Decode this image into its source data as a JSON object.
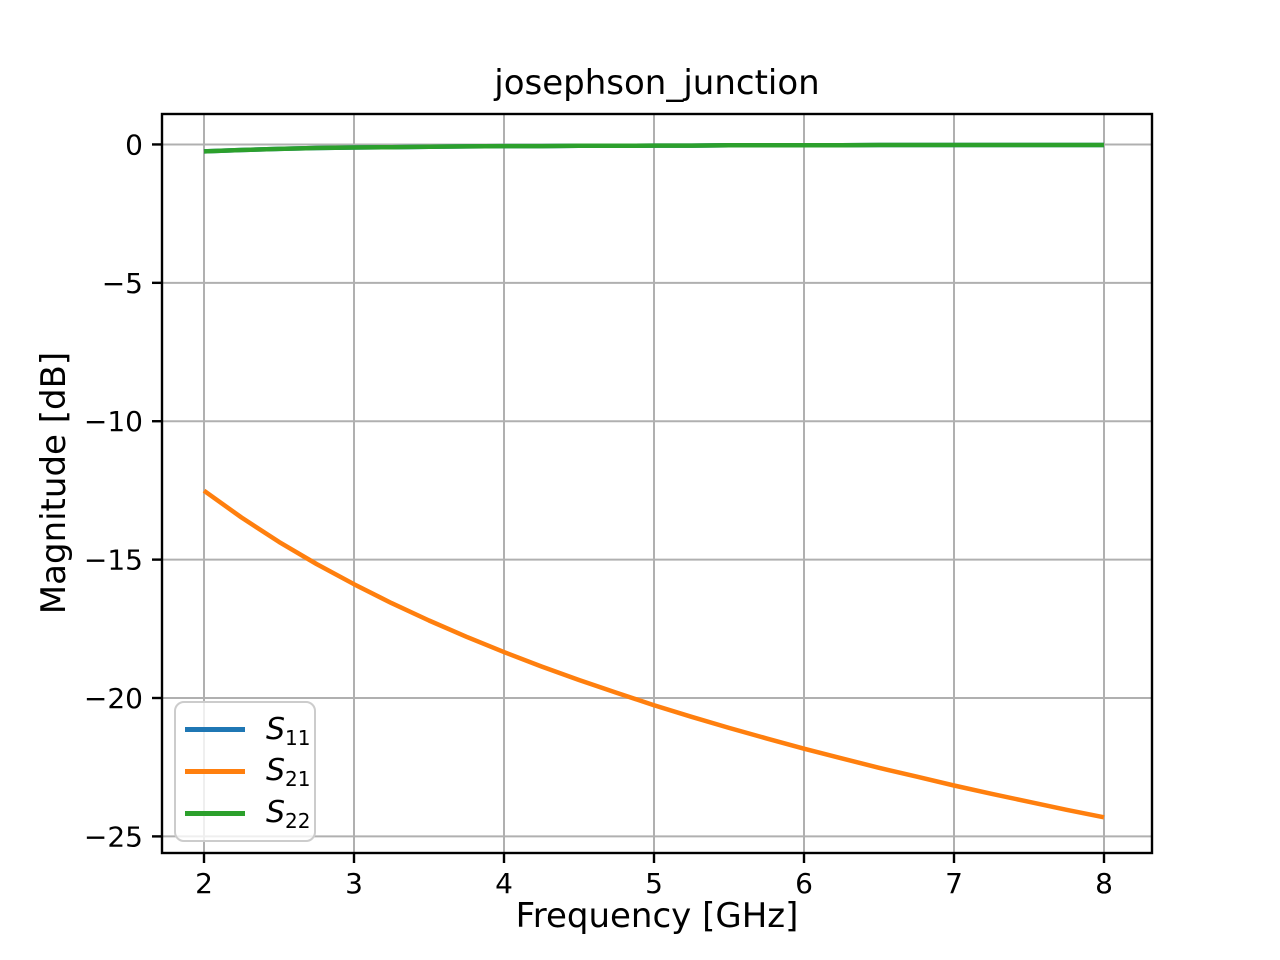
{
  "chart_data": {
    "type": "line",
    "title": "josephson_junction",
    "xlabel": "Frequency [GHz]",
    "ylabel": "Magnitude [dB]",
    "xlim": [
      1.72,
      8.32
    ],
    "ylim": [
      -25.6,
      1.1
    ],
    "x_ticks": [
      2,
      3,
      4,
      5,
      6,
      7,
      8
    ],
    "y_ticks": [
      0,
      -5,
      -10,
      -15,
      -20,
      -25
    ],
    "grid": true,
    "grid_color": "#b0b0b0",
    "spine_color": "#000000",
    "legend_position": "lower left",
    "x": [
      2.0,
      2.25,
      2.5,
      2.75,
      3.0,
      3.25,
      3.5,
      3.75,
      4.0,
      4.25,
      4.5,
      4.75,
      5.0,
      5.25,
      5.5,
      5.75,
      6.0,
      6.25,
      6.5,
      6.75,
      7.0,
      7.25,
      7.5,
      7.75,
      8.0
    ],
    "series": [
      {
        "name": "S11",
        "label_base": "S",
        "label_sub": "11",
        "color": "#1f77b4",
        "values": [
          -0.25,
          -0.2,
          -0.16,
          -0.13,
          -0.11,
          -0.1,
          -0.08,
          -0.07,
          -0.06,
          -0.06,
          -0.05,
          -0.05,
          -0.04,
          -0.04,
          -0.03,
          -0.03,
          -0.03,
          -0.03,
          -0.02,
          -0.02,
          -0.02,
          -0.02,
          -0.02,
          -0.02,
          -0.02
        ]
      },
      {
        "name": "S21",
        "label_base": "S",
        "label_sub": "21",
        "color": "#ff7f0e",
        "values": [
          -12.51,
          -13.48,
          -14.36,
          -15.16,
          -15.89,
          -16.57,
          -17.2,
          -17.79,
          -18.34,
          -18.86,
          -19.35,
          -19.81,
          -20.26,
          -20.68,
          -21.08,
          -21.46,
          -21.83,
          -22.18,
          -22.52,
          -22.84,
          -23.16,
          -23.46,
          -23.75,
          -24.04,
          -24.31
        ]
      },
      {
        "name": "S22",
        "label_base": "S",
        "label_sub": "22",
        "color": "#2ca02c",
        "values": [
          -0.25,
          -0.2,
          -0.16,
          -0.13,
          -0.11,
          -0.1,
          -0.08,
          -0.07,
          -0.06,
          -0.06,
          -0.05,
          -0.05,
          -0.04,
          -0.04,
          -0.03,
          -0.03,
          -0.03,
          -0.03,
          -0.02,
          -0.02,
          -0.02,
          -0.02,
          -0.02,
          -0.02,
          -0.02
        ]
      }
    ]
  }
}
